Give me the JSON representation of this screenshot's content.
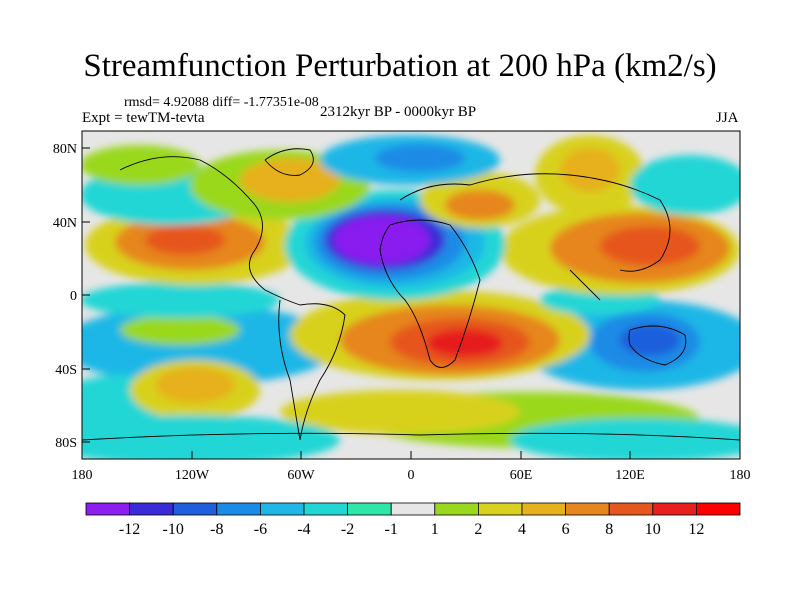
{
  "title": "Streamfunction Perturbation at 200 hPa (km2/s)",
  "stats": "rmsd= 4.92088  diff= -1.77351e-08",
  "experiment": "Expt = tewTM-tevta",
  "period": "2312kyr BP - 0000kyr BP",
  "season": "JJA",
  "lat_ticks": [
    "80N",
    "40N",
    "0",
    "40S",
    "80S"
  ],
  "lon_ticks": [
    "180",
    "120W",
    "60W",
    "0",
    "60E",
    "120E",
    "180"
  ],
  "colorbar": {
    "labels": [
      "-12",
      "-10",
      "-8",
      "-6",
      "-4",
      "-2",
      "-1",
      "1",
      "2",
      "4",
      "6",
      "8",
      "10",
      "12"
    ],
    "colors": [
      "#8a1ff0",
      "#3b2bd6",
      "#1f5fdc",
      "#1a8be6",
      "#1fb7e6",
      "#22d6d6",
      "#2de6a8",
      "#e6e6e6",
      "#9ad81f",
      "#d8d11f",
      "#e6b11f",
      "#e6861f",
      "#e6561f",
      "#e61f1f",
      "#ff0000"
    ]
  },
  "background_color": "#e6e6e6"
}
